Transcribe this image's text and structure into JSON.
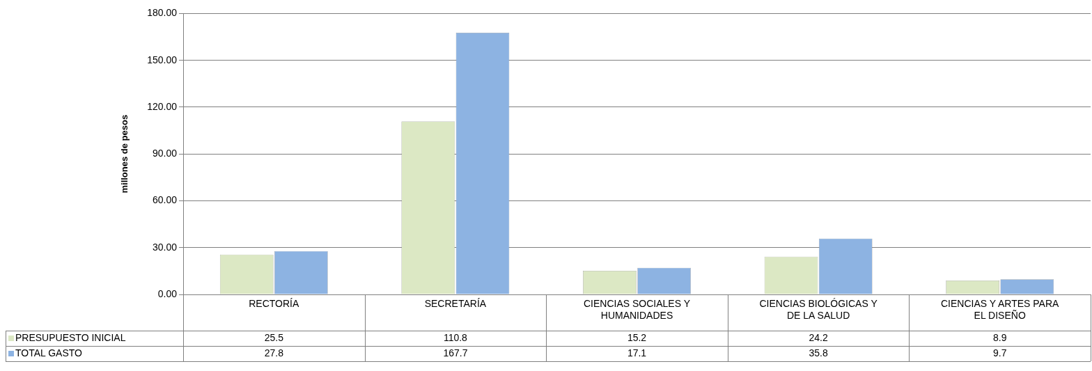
{
  "chart_data": {
    "type": "bar",
    "ylabel": "millones de pesos",
    "categories": [
      "RECTORÍA",
      "SECRETARÍA",
      "CIENCIAS SOCIALES Y HUMANIDADES",
      "CIENCIAS BIOLÓGICAS Y DE LA SALUD",
      "CIENCIAS Y ARTES PARA EL DISEÑO"
    ],
    "series": [
      {
        "name": "PRESUPUESTO INICIAL",
        "color": "#dce8c4",
        "values": [
          25.5,
          110.8,
          15.2,
          24.2,
          8.9
        ]
      },
      {
        "name": "TOTAL GASTO",
        "color": "#8db3e2",
        "values": [
          27.8,
          167.7,
          17.1,
          35.8,
          9.7
        ]
      }
    ],
    "ylim": [
      0,
      180
    ],
    "yticks": [
      {
        "value": 0,
        "label": "0.00"
      },
      {
        "value": 30,
        "label": "30.00"
      },
      {
        "value": 60,
        "label": "60.00"
      },
      {
        "value": 90,
        "label": "90.00"
      },
      {
        "value": 120,
        "label": "120.00"
      },
      {
        "value": 150,
        "label": "150.00"
      },
      {
        "value": 180,
        "label": "180.00"
      }
    ],
    "grid": "y",
    "legend": "bottom",
    "data_labels": true
  }
}
